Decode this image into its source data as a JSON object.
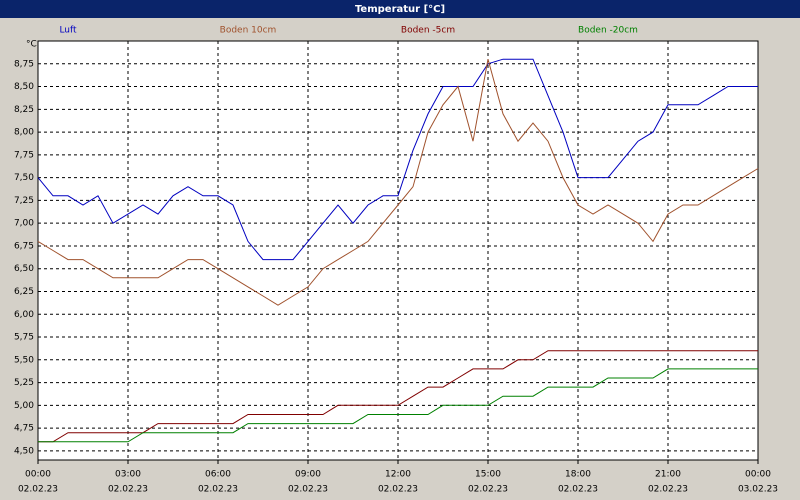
{
  "chart_data": {
    "type": "line",
    "title": "Temperatur [°C]",
    "y_unit": "°C",
    "x": [
      0,
      0.5,
      1,
      1.5,
      2,
      2.5,
      3,
      3.5,
      4,
      4.5,
      5,
      5.5,
      6,
      6.5,
      7,
      7.5,
      8,
      8.5,
      9,
      9.5,
      10,
      10.5,
      11,
      11.5,
      12,
      12.5,
      13,
      13.5,
      14,
      14.5,
      15,
      15.5,
      16,
      16.5,
      17,
      17.5,
      18,
      18.5,
      19,
      19.5,
      20,
      20.5,
      21,
      21.5,
      22,
      22.5,
      23,
      23.5,
      24
    ],
    "xlim": [
      0,
      24
    ],
    "xticks": [
      {
        "value": 0,
        "label": "00:00",
        "date": "02.02.23"
      },
      {
        "value": 3,
        "label": "03:00",
        "date": "02.02.23"
      },
      {
        "value": 6,
        "label": "06:00",
        "date": "02.02.23"
      },
      {
        "value": 9,
        "label": "09:00",
        "date": "02.02.23"
      },
      {
        "value": 12,
        "label": "12:00",
        "date": "02.02.23"
      },
      {
        "value": 15,
        "label": "15:00",
        "date": "02.02.23"
      },
      {
        "value": 18,
        "label": "18:00",
        "date": "02.02.23"
      },
      {
        "value": 21,
        "label": "21:00",
        "date": "02.02.23"
      },
      {
        "value": 24,
        "label": "00:00",
        "date": "03.02.23"
      }
    ],
    "ylim": [
      4.4,
      9.0
    ],
    "yticks": [
      {
        "value": 4.5,
        "label": "4,50"
      },
      {
        "value": 4.75,
        "label": "4,75"
      },
      {
        "value": 5,
        "label": "5,00"
      },
      {
        "value": 5.25,
        "label": "5,25"
      },
      {
        "value": 5.5,
        "label": "5,50"
      },
      {
        "value": 5.75,
        "label": "5,75"
      },
      {
        "value": 6,
        "label": "6,00"
      },
      {
        "value": 6.25,
        "label": "6,25"
      },
      {
        "value": 6.5,
        "label": "6,50"
      },
      {
        "value": 6.75,
        "label": "6,75"
      },
      {
        "value": 7,
        "label": "7,00"
      },
      {
        "value": 7.25,
        "label": "7,25"
      },
      {
        "value": 7.5,
        "label": "7,50"
      },
      {
        "value": 7.75,
        "label": "7,75"
      },
      {
        "value": 8,
        "label": "8,00"
      },
      {
        "value": 8.25,
        "label": "8,25"
      },
      {
        "value": 8.5,
        "label": "8,50"
      },
      {
        "value": 8.75,
        "label": "8,75"
      }
    ],
    "grid": true,
    "series": [
      {
        "name": "Luft",
        "color": "#0000c0",
        "values": [
          7.5,
          7.3,
          7.3,
          7.2,
          7.3,
          7.0,
          7.1,
          7.2,
          7.1,
          7.3,
          7.4,
          7.3,
          7.3,
          7.2,
          6.8,
          6.6,
          6.6,
          6.6,
          6.8,
          7.0,
          7.2,
          7.0,
          7.2,
          7.3,
          7.3,
          7.8,
          8.2,
          8.5,
          8.5,
          8.5,
          8.75,
          8.8,
          8.8,
          8.8,
          8.4,
          8.0,
          7.5,
          7.5,
          7.5,
          7.7,
          7.9,
          8.0,
          8.3,
          8.3,
          8.3,
          8.4,
          8.5,
          8.5,
          8.5
        ]
      },
      {
        "name": "Boden 10cm",
        "color": "#a0522d",
        "values": [
          6.8,
          6.7,
          6.6,
          6.6,
          6.5,
          6.4,
          6.4,
          6.4,
          6.4,
          6.5,
          6.6,
          6.6,
          6.5,
          6.4,
          6.3,
          6.2,
          6.1,
          6.2,
          6.3,
          6.5,
          6.6,
          6.7,
          6.8,
          7.0,
          7.2,
          7.4,
          8.0,
          8.3,
          8.5,
          7.9,
          8.8,
          8.2,
          7.9,
          8.1,
          7.9,
          7.5,
          7.2,
          7.1,
          7.2,
          7.1,
          7.0,
          6.8,
          7.1,
          7.2,
          7.2,
          7.3,
          7.4,
          7.5,
          7.6
        ]
      },
      {
        "name": "Boden -5cm",
        "color": "#800000",
        "values": [
          4.6,
          4.6,
          4.7,
          4.7,
          4.7,
          4.7,
          4.7,
          4.7,
          4.8,
          4.8,
          4.8,
          4.8,
          4.8,
          4.8,
          4.9,
          4.9,
          4.9,
          4.9,
          4.9,
          4.9,
          5.0,
          5.0,
          5.0,
          5.0,
          5.0,
          5.1,
          5.2,
          5.2,
          5.3,
          5.4,
          5.4,
          5.4,
          5.5,
          5.5,
          5.6,
          5.6,
          5.6,
          5.6,
          5.6,
          5.6,
          5.6,
          5.6,
          5.6,
          5.6,
          5.6,
          5.6,
          5.6,
          5.6,
          5.6
        ]
      },
      {
        "name": "Boden -20cm",
        "color": "#008000",
        "values": [
          4.6,
          4.6,
          4.6,
          4.6,
          4.6,
          4.6,
          4.6,
          4.7,
          4.7,
          4.7,
          4.7,
          4.7,
          4.7,
          4.7,
          4.8,
          4.8,
          4.8,
          4.8,
          4.8,
          4.8,
          4.8,
          4.8,
          4.9,
          4.9,
          4.9,
          4.9,
          4.9,
          5.0,
          5.0,
          5.0,
          5.0,
          5.1,
          5.1,
          5.1,
          5.2,
          5.2,
          5.2,
          5.2,
          5.3,
          5.3,
          5.3,
          5.3,
          5.4,
          5.4,
          5.4,
          5.4,
          5.4,
          5.4,
          5.4
        ]
      }
    ]
  }
}
